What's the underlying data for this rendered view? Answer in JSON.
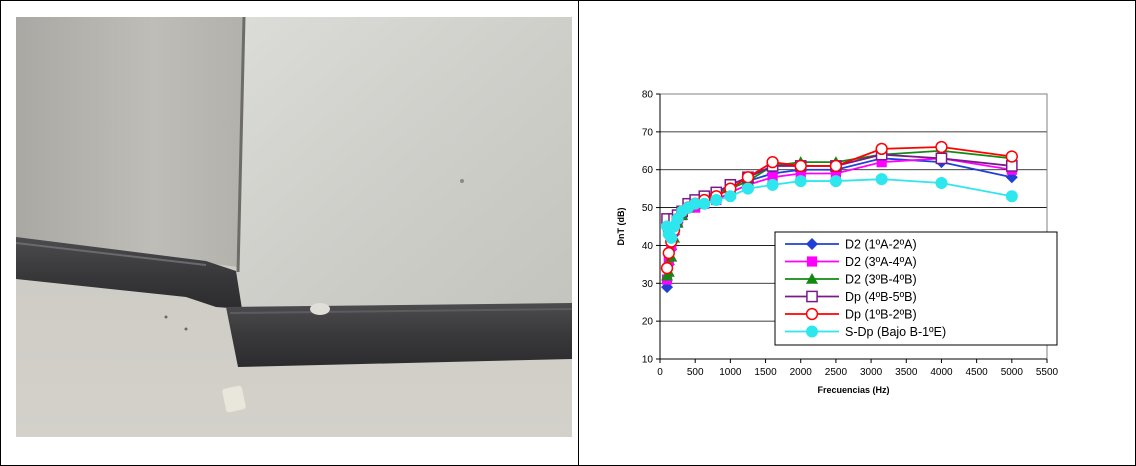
{
  "chart_data": {
    "type": "line",
    "xlabel": "Frecuencias (Hz)",
    "ylabel": "DnT (dB)",
    "xlim": [
      0,
      5500
    ],
    "ylim": [
      10,
      80
    ],
    "x_ticks": [
      "0",
      "500",
      "1000",
      "1500",
      "2000",
      "2500",
      "3000",
      "3500",
      "4000",
      "4500",
      "5000",
      "5500"
    ],
    "y_ticks": [
      "10",
      "20",
      "30",
      "40",
      "50",
      "60",
      "70",
      "80"
    ],
    "grid": "horizontal",
    "legend_position": "lower-right",
    "x": [
      100,
      125,
      160,
      200,
      250,
      315,
      400,
      500,
      630,
      800,
      1000,
      1250,
      1600,
      2000,
      2500,
      3150,
      4000,
      5000
    ],
    "series": [
      {
        "name": "D2 (1ºA-2ºA)",
        "color": "#1f3fd6",
        "marker": "diamond",
        "values": [
          29,
          35,
          39,
          43,
          46,
          48,
          50,
          51,
          52,
          53,
          55,
          57,
          59,
          60,
          60,
          63,
          62,
          58
        ]
      },
      {
        "name": "D2 (3ºA-4ºA)",
        "color": "#ff00ff",
        "marker": "square",
        "values": [
          31,
          36,
          40,
          44,
          46,
          48,
          50,
          50,
          51,
          52,
          54,
          56,
          58,
          59,
          59,
          62,
          63,
          60
        ]
      },
      {
        "name": "D2 (3ºB-4ºB)",
        "color": "#128a12",
        "marker": "triangle",
        "values": [
          32,
          33,
          37,
          42,
          46,
          48,
          50,
          51,
          53,
          54,
          55,
          57,
          61,
          62,
          62,
          64,
          65,
          63
        ]
      },
      {
        "name": "Dp (4ºB-5ºB)",
        "color": "#7a1a8a",
        "marker": "open-square",
        "values": [
          47,
          44,
          45,
          47,
          48,
          49,
          51,
          52,
          53,
          54,
          56,
          58,
          61,
          61,
          61,
          64,
          63,
          61
        ]
      },
      {
        "name": "Dp (1ºB-2ºB)",
        "color": "#ff0000",
        "marker": "open-circle",
        "values": [
          34,
          38,
          41,
          44,
          47,
          49,
          50,
          51,
          52,
          53,
          55,
          58,
          62,
          61,
          61,
          65.5,
          66,
          63.5
        ]
      },
      {
        "name": "S-Dp (Bajo B-1ºE)",
        "color": "#2ee6ee",
        "marker": "circle",
        "values": [
          45,
          43,
          42,
          45,
          47,
          49,
          50,
          51,
          51,
          52,
          53,
          55,
          56,
          57,
          57,
          57.5,
          56.5,
          53
        ]
      }
    ]
  }
}
